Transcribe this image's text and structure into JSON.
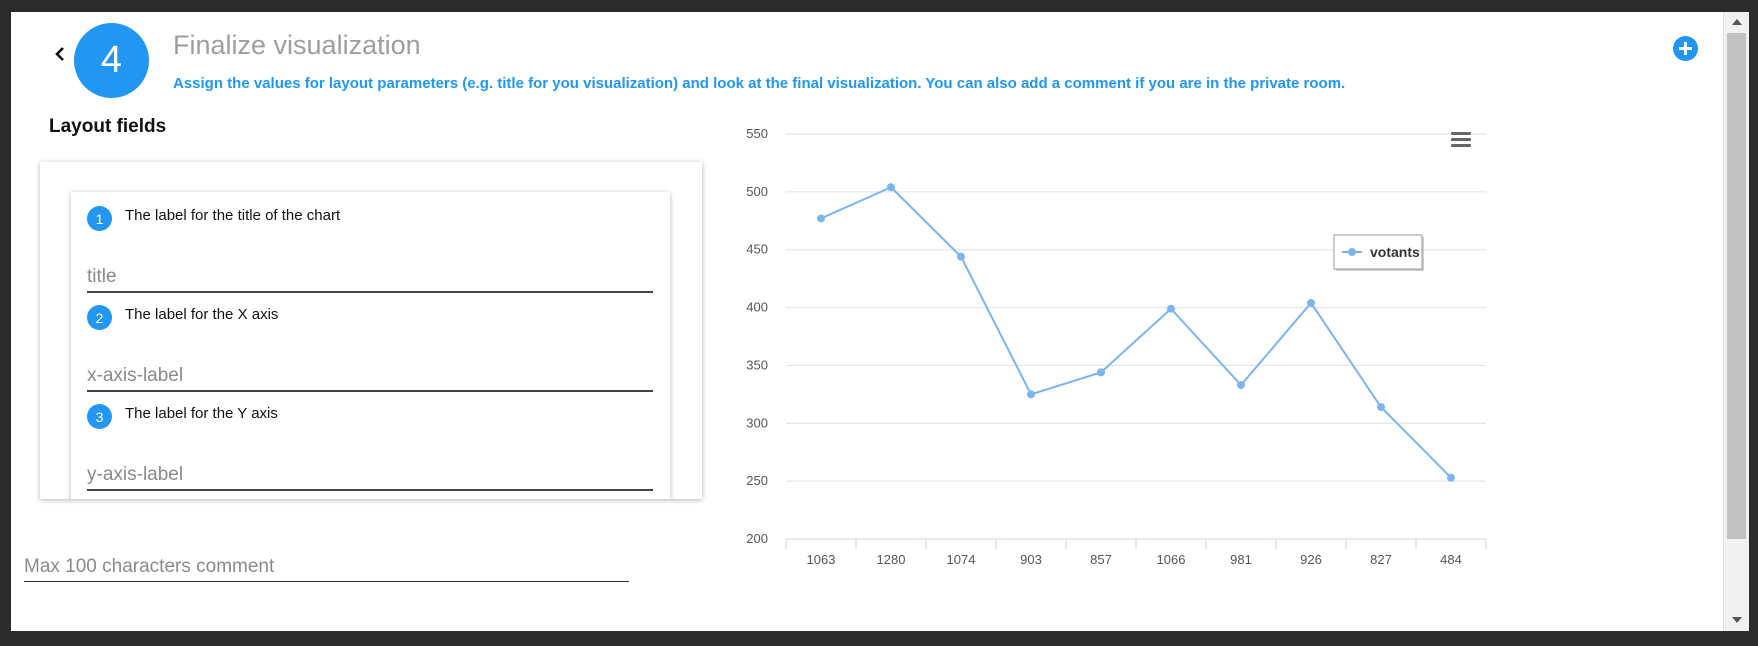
{
  "step": {
    "number": "4",
    "title": "Finalize visualization",
    "description": "Assign the values for layout parameters (e.g. title for you visualization) and look at the final visualization. You can also add a comment if you are in the private room."
  },
  "layout": {
    "heading": "Layout fields",
    "fields": [
      {
        "number": "1",
        "label": "The label for the title of the chart",
        "placeholder": "title"
      },
      {
        "number": "2",
        "label": "The label for the X axis",
        "placeholder": "x-axis-label"
      },
      {
        "number": "3",
        "label": "The label for the Y axis",
        "placeholder": "y-axis-label"
      }
    ]
  },
  "comment": {
    "placeholder": "Max 100 characters comment"
  },
  "icons": {
    "back": "chevron-left-icon",
    "add": "plus-circle-icon",
    "menu": "hamburger-menu-icon"
  },
  "colors": {
    "accent": "#2196f3",
    "series": "#7cb5ec"
  },
  "chart_data": {
    "type": "line",
    "categories": [
      "1063",
      "1280",
      "1074",
      "903",
      "857",
      "1066",
      "981",
      "926",
      "827",
      "484"
    ],
    "series": [
      {
        "name": "votants",
        "values": [
          477,
          504,
          444,
          325,
          344,
          399,
          333,
          404,
          314,
          253
        ]
      }
    ],
    "ylim": [
      200,
      550
    ],
    "yticks": [
      "550",
      "500",
      "450",
      "400",
      "350",
      "300",
      "250",
      "200"
    ],
    "grid": true,
    "legend": "top-right"
  }
}
